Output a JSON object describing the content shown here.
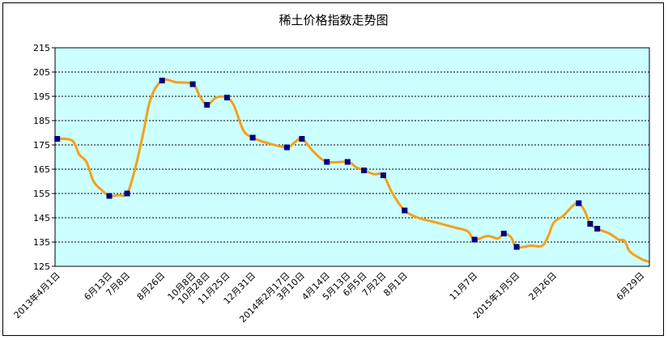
{
  "chart_data": {
    "type": "line",
    "title": "稀土价格指数走势图",
    "xlabel": "",
    "ylabel": "",
    "ylim": [
      125,
      215
    ],
    "y_ticks": [
      125,
      135,
      145,
      155,
      165,
      175,
      185,
      195,
      205,
      215
    ],
    "grid": true,
    "legend": "none",
    "colors": {
      "line": "#f5a01a",
      "marker": "#000080",
      "plot_bg": "#ccffff",
      "grid": "#000000"
    },
    "x_tick_labels": [
      "2013年4月1日",
      "6月13日",
      "7月8日",
      "8月26日",
      "10月8日",
      "10月28日",
      "11月25日",
      "12月31日",
      "2014年2月17日",
      "3月10日",
      "4月14日",
      "5月13日",
      "6月5日",
      "7月2日",
      "8月1日",
      "11月7日",
      "2015年1月5日",
      "2月26日",
      "6月29日"
    ],
    "series": [
      {
        "values": [
          {
            "x": "2013-04-01",
            "y": 177.5,
            "marker": true
          },
          {
            "x": "2013-04-22",
            "y": 176.8
          },
          {
            "x": "2013-05-02",
            "y": 171
          },
          {
            "x": "2013-05-12",
            "y": 168
          },
          {
            "x": "2013-05-22",
            "y": 160
          },
          {
            "x": "2013-06-02",
            "y": 156.5
          },
          {
            "x": "2013-06-13",
            "y": 154,
            "marker": true
          },
          {
            "x": "2013-06-25",
            "y": 154.3
          },
          {
            "x": "2013-07-08",
            "y": 155,
            "marker": true
          },
          {
            "x": "2013-07-19",
            "y": 165
          },
          {
            "x": "2013-07-30",
            "y": 179
          },
          {
            "x": "2013-08-10",
            "y": 194
          },
          {
            "x": "2013-08-26",
            "y": 201.5,
            "marker": true
          },
          {
            "x": "2013-09-15",
            "y": 200.8
          },
          {
            "x": "2013-10-08",
            "y": 200,
            "marker": true
          },
          {
            "x": "2013-10-18",
            "y": 195
          },
          {
            "x": "2013-10-28",
            "y": 191.5,
            "marker": true
          },
          {
            "x": "2013-11-10",
            "y": 194.5
          },
          {
            "x": "2013-11-25",
            "y": 194.5,
            "marker": true
          },
          {
            "x": "2013-12-05",
            "y": 191
          },
          {
            "x": "2013-12-18",
            "y": 181
          },
          {
            "x": "2013-12-31",
            "y": 178,
            "marker": true
          },
          {
            "x": "2014-01-20",
            "y": 175.8
          },
          {
            "x": "2014-02-17",
            "y": 174,
            "marker": true
          },
          {
            "x": "2014-02-27",
            "y": 175.8
          },
          {
            "x": "2014-03-10",
            "y": 177.5,
            "marker": true
          },
          {
            "x": "2014-03-27",
            "y": 172
          },
          {
            "x": "2014-04-14",
            "y": 168,
            "marker": true
          },
          {
            "x": "2014-05-13",
            "y": 168,
            "marker": true
          },
          {
            "x": "2014-05-25",
            "y": 165.8
          },
          {
            "x": "2014-06-05",
            "y": 164.5,
            "marker": true
          },
          {
            "x": "2014-06-18",
            "y": 163
          },
          {
            "x": "2014-07-02",
            "y": 162.5,
            "marker": true
          },
          {
            "x": "2014-07-15",
            "y": 155
          },
          {
            "x": "2014-08-01",
            "y": 148,
            "marker": true
          },
          {
            "x": "2014-08-20",
            "y": 145
          },
          {
            "x": "2014-09-15",
            "y": 143
          },
          {
            "x": "2014-10-10",
            "y": 141
          },
          {
            "x": "2014-10-28",
            "y": 139.5
          },
          {
            "x": "2014-11-07",
            "y": 136,
            "marker": true
          },
          {
            "x": "2014-11-25",
            "y": 137.5
          },
          {
            "x": "2014-12-10",
            "y": 136.5
          },
          {
            "x": "2014-12-18",
            "y": 138.5,
            "marker": true
          },
          {
            "x": "2014-12-28",
            "y": 137
          },
          {
            "x": "2015-01-05",
            "y": 133,
            "marker": true
          },
          {
            "x": "2015-01-25",
            "y": 133.5
          },
          {
            "x": "2015-02-10",
            "y": 133.5
          },
          {
            "x": "2015-02-19",
            "y": 138
          },
          {
            "x": "2015-02-26",
            "y": 143
          },
          {
            "x": "2015-03-12",
            "y": 146
          },
          {
            "x": "2015-03-25",
            "y": 150
          },
          {
            "x": "2015-04-02",
            "y": 151,
            "marker": true
          },
          {
            "x": "2015-04-10",
            "y": 148
          },
          {
            "x": "2015-04-18",
            "y": 142.5,
            "marker": true
          },
          {
            "x": "2015-04-28",
            "y": 140.5,
            "marker": true
          },
          {
            "x": "2015-05-15",
            "y": 138.5
          },
          {
            "x": "2015-05-28",
            "y": 136
          },
          {
            "x": "2015-06-05",
            "y": 135.5
          },
          {
            "x": "2015-06-13",
            "y": 131
          },
          {
            "x": "2015-06-29",
            "y": 128
          },
          {
            "x": "2015-07-08",
            "y": 127
          }
        ]
      }
    ]
  }
}
